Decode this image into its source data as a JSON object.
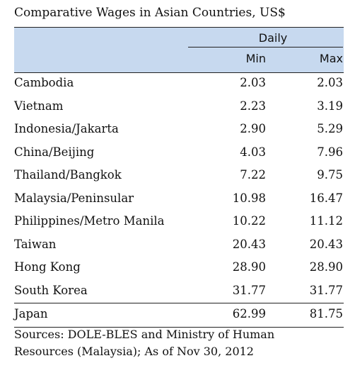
{
  "title": "Comparative Wages in Asian Countries, US$",
  "header": {
    "group": "Daily",
    "columns": [
      "Min",
      "Max"
    ]
  },
  "rows": [
    {
      "country": "Cambodia",
      "min": "2.03",
      "max": "2.03"
    },
    {
      "country": "Vietnam",
      "min": "2.23",
      "max": "3.19"
    },
    {
      "country": "Indonesia/Jakarta",
      "min": "2.90",
      "max": "5.29"
    },
    {
      "country": "China/Beijing",
      "min": "4.03",
      "max": "7.96"
    },
    {
      "country": "Thailand/Bangkok",
      "min": "7.22",
      "max": "9.75"
    },
    {
      "country": "Malaysia/Peninsular",
      "min": "10.98",
      "max": "16.47"
    },
    {
      "country": "Philippines/Metro Manila",
      "min": "10.22",
      "max": "11.12"
    },
    {
      "country": "Taiwan",
      "min": "20.43",
      "max": "20.43"
    },
    {
      "country": "Hong Kong",
      "min": "28.90",
      "max": "28.90"
    },
    {
      "country": "South Korea",
      "min": "31.77",
      "max": "31.77"
    },
    {
      "country": "Japan",
      "min": "62.99",
      "max": "81.75"
    }
  ],
  "footnote": {
    "line1": "Sources: DOLE-BLES and Ministry of Human",
    "line2": "Resources (Malaysia); As of Nov 30, 2012"
  }
}
